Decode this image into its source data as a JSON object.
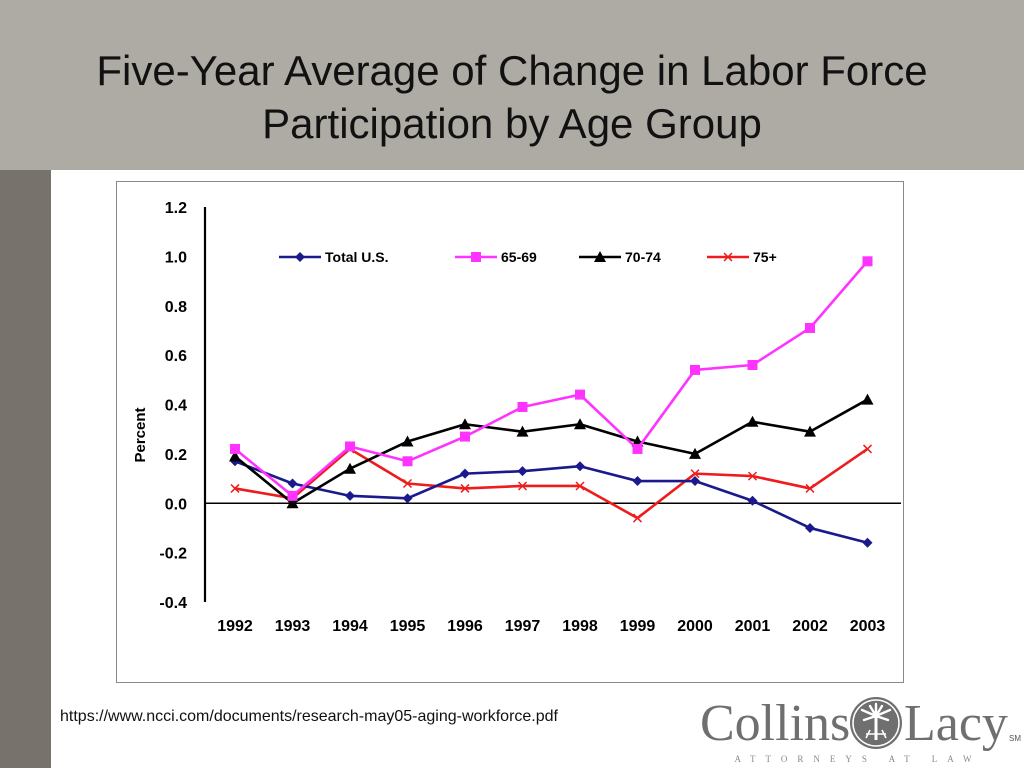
{
  "slide": {
    "title_line1": "Five-Year Average of Change in Labor Force",
    "title_line2": "Participation by Age Group",
    "source_url": "https://www.ncci.com/documents/research-may05-aging-workforce.pdf"
  },
  "logo": {
    "left": "Collins",
    "right": "Lacy",
    "tagline": "ATTORNEYS AT LAW",
    "mark": "SM",
    "emblem_icon": "palmetto-tree-emblem-icon"
  },
  "colors": {
    "title_band": "#aeaba5",
    "left_bar": "#77726c"
  },
  "chart_data": {
    "type": "line",
    "title": "",
    "xlabel": "",
    "ylabel": "Percent",
    "categories": [
      "1992",
      "1993",
      "1994",
      "1995",
      "1996",
      "1997",
      "1998",
      "1999",
      "2000",
      "2001",
      "2002",
      "2003"
    ],
    "ylim": [
      -0.4,
      1.2
    ],
    "yticks": [
      "1.2",
      "1.0",
      "0.8",
      "0.6",
      "0.4",
      "0.2",
      "0.0",
      "-0.2",
      "-0.4"
    ],
    "grid": false,
    "legend_position": "top",
    "series": [
      {
        "name": "Total U.S.",
        "color": "#1a1a8c",
        "marker": "diamond",
        "values": [
          0.17,
          0.08,
          0.03,
          0.02,
          0.12,
          0.13,
          0.15,
          0.09,
          0.09,
          0.01,
          -0.1,
          -0.16
        ]
      },
      {
        "name": "65-69",
        "color": "#ff33ff",
        "marker": "square",
        "values": [
          0.22,
          0.03,
          0.23,
          0.17,
          0.27,
          0.39,
          0.44,
          0.22,
          0.54,
          0.56,
          0.71,
          0.98
        ]
      },
      {
        "name": "70-74",
        "color": "#000000",
        "marker": "triangle",
        "values": [
          0.19,
          0.0,
          0.14,
          0.25,
          0.32,
          0.29,
          0.32,
          0.25,
          0.2,
          0.33,
          0.29,
          0.42
        ]
      },
      {
        "name": "75+",
        "color": "#ee1c1c",
        "marker": "x",
        "values": [
          0.06,
          0.02,
          0.22,
          0.08,
          0.06,
          0.07,
          0.07,
          -0.06,
          0.12,
          0.11,
          0.06,
          0.22
        ]
      }
    ]
  }
}
